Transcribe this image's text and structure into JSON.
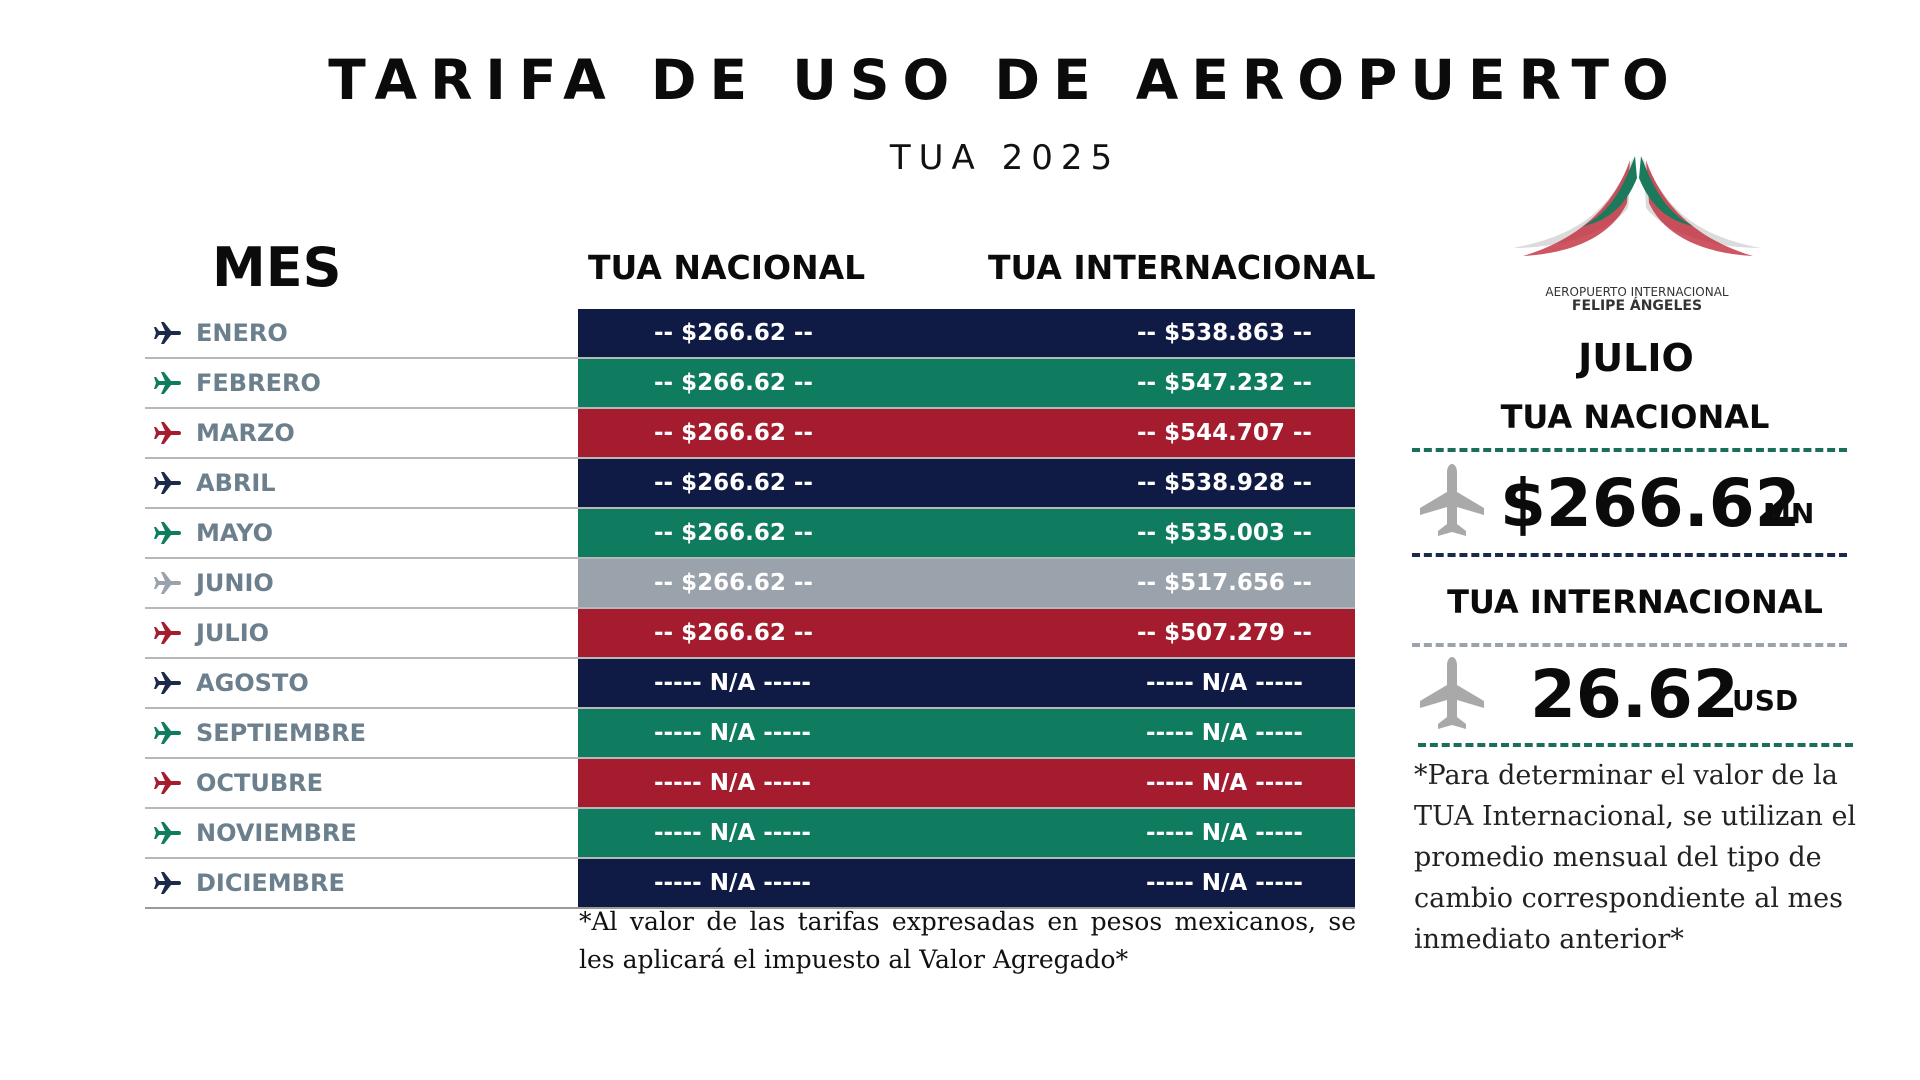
{
  "title": "TARIFA DE USO DE AEROPUERTO",
  "subtitle": "TUA 2025",
  "headers": {
    "mes": "MES",
    "nacional": "TUA NACIONAL",
    "internacional": "TUA INTERNACIONAL"
  },
  "colors": {
    "navy": "#0f1b45",
    "green": "#0f7b5f",
    "red": "#a51c2e",
    "gray": "#9aa2ab"
  },
  "rows": [
    {
      "month": "ENERO",
      "nacional": "-- $266.62 --",
      "internacional": "-- $538.863 --",
      "color": "#0f1b45",
      "plane_color": "#1b2a4a"
    },
    {
      "month": "FEBRERO",
      "nacional": "-- $266.62 --",
      "internacional": "-- $547.232 --",
      "color": "#0f7b5f",
      "plane_color": "#0f7b5f"
    },
    {
      "month": "MARZO",
      "nacional": "-- $266.62 --",
      "internacional": "-- $544.707 --",
      "color": "#a51c2e",
      "plane_color": "#a51c2e"
    },
    {
      "month": "ABRIL",
      "nacional": "-- $266.62 --",
      "internacional": "-- $538.928 --",
      "color": "#0f1b45",
      "plane_color": "#1b2a4a"
    },
    {
      "month": "MAYO",
      "nacional": "-- $266.62 --",
      "internacional": "-- $535.003 --",
      "color": "#0f7b5f",
      "plane_color": "#0f7b5f"
    },
    {
      "month": "JUNIO",
      "nacional": "-- $266.62 --",
      "internacional": "-- $517.656 --",
      "color": "#9aa2ab",
      "plane_color": "#9aa2ab"
    },
    {
      "month": "JULIO",
      "nacional": "-- $266.62 --",
      "internacional": "-- $507.279 --",
      "color": "#a51c2e",
      "plane_color": "#a51c2e"
    },
    {
      "month": "AGOSTO",
      "nacional": "----- N/A -----",
      "internacional": "----- N/A -----",
      "color": "#0f1b45",
      "plane_color": "#1b2a4a"
    },
    {
      "month": "SEPTIEMBRE",
      "nacional": "----- N/A -----",
      "internacional": "----- N/A -----",
      "color": "#0f7b5f",
      "plane_color": "#0f7b5f"
    },
    {
      "month": "OCTUBRE",
      "nacional": "----- N/A -----",
      "internacional": "----- N/A -----",
      "color": "#a51c2e",
      "plane_color": "#a51c2e"
    },
    {
      "month": "NOVIEMBRE",
      "nacional": "----- N/A -----",
      "internacional": "----- N/A -----",
      "color": "#0f7b5f",
      "plane_color": "#0f7b5f"
    },
    {
      "month": "DICIEMBRE",
      "nacional": "----- N/A -----",
      "internacional": "----- N/A -----",
      "color": "#0f1b45",
      "plane_color": "#1b2a4a"
    }
  ],
  "note_left": "*Al valor de las tarifas expresadas en pesos mexicanos, se les aplicará el impuesto al Valor Agregado*",
  "logo": {
    "line1": "AEROPUERTO INTERNACIONAL",
    "line2": "FELIPE ÁNGELES"
  },
  "panel": {
    "month": "JULIO",
    "nacional_label": "TUA NACIONAL",
    "nacional_value": "$266.62",
    "nacional_unit": "MN",
    "internacional_label": "TUA INTERNACIONAL",
    "internacional_value": "26.62",
    "internacional_unit": "USD",
    "note": "*Para determinar el valor de la TUA Internacional, se utilizan el promedio mensual del tipo de cambio correspondiente al mes inmediato anterior*"
  },
  "icons": {
    "row_icon": "airplane-icon",
    "panel_icon": "airplane-icon"
  }
}
